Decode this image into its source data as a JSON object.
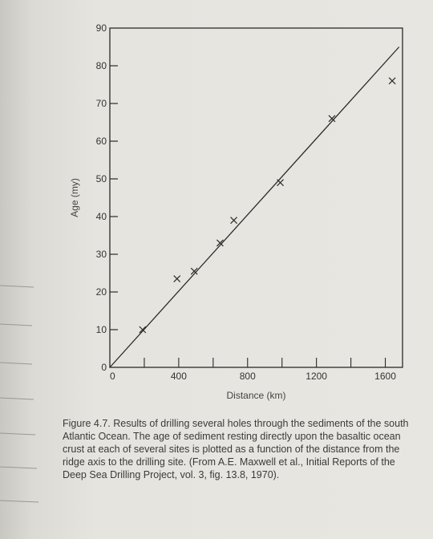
{
  "chart_data": {
    "type": "scatter",
    "xlabel": "Distance (km)",
    "ylabel": "Age (my)",
    "xlim": [
      0,
      1700
    ],
    "ylim": [
      0,
      90
    ],
    "x_ticks": [
      0,
      400,
      800,
      1200,
      1600
    ],
    "y_ticks": [
      0,
      10,
      20,
      30,
      40,
      50,
      60,
      70,
      80,
      90
    ],
    "grid": false,
    "points": [
      {
        "x": 190,
        "y": 10
      },
      {
        "x": 390,
        "y": 23.5
      },
      {
        "x": 490,
        "y": 25.5
      },
      {
        "x": 640,
        "y": 33
      },
      {
        "x": 720,
        "y": 39
      },
      {
        "x": 990,
        "y": 49
      },
      {
        "x": 1290,
        "y": 66
      },
      {
        "x": 1640,
        "y": 76
      }
    ],
    "fit_line": {
      "x0": 0,
      "y0": 0,
      "x1": 1680,
      "y1": 85
    }
  },
  "caption": {
    "label": "Figure 4.7.",
    "text": "Results of drilling several holes through the sediments of the south Atlantic Ocean. The age of sediment resting directly upon the basaltic ocean crust at each of several sites is plotted as a function of the distance from the ridge axis to the drilling site. (From A.E. Maxwell et al., Initial Reports of the Deep Sea Drilling Project, vol. 3, fig. 13.8, 1970)."
  }
}
